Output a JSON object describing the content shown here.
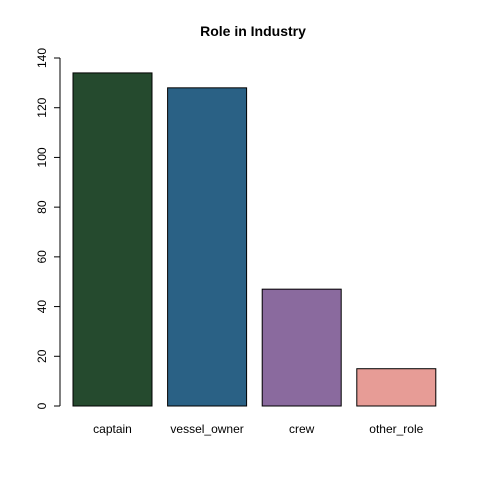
{
  "chart_data": {
    "type": "bar",
    "title": "Role in Industry",
    "xlabel": "",
    "ylabel": "",
    "categories": [
      "captain",
      "vessel_owner",
      "crew",
      "other_role"
    ],
    "values": [
      134,
      128,
      47,
      15
    ],
    "colors": [
      "#254A2E",
      "#2A6185",
      "#8A6A9E",
      "#E79C96"
    ],
    "yticks": [
      0,
      20,
      40,
      60,
      80,
      100,
      120,
      140
    ],
    "ylim": [
      0,
      140
    ],
    "grid": false,
    "legend": "none"
  }
}
